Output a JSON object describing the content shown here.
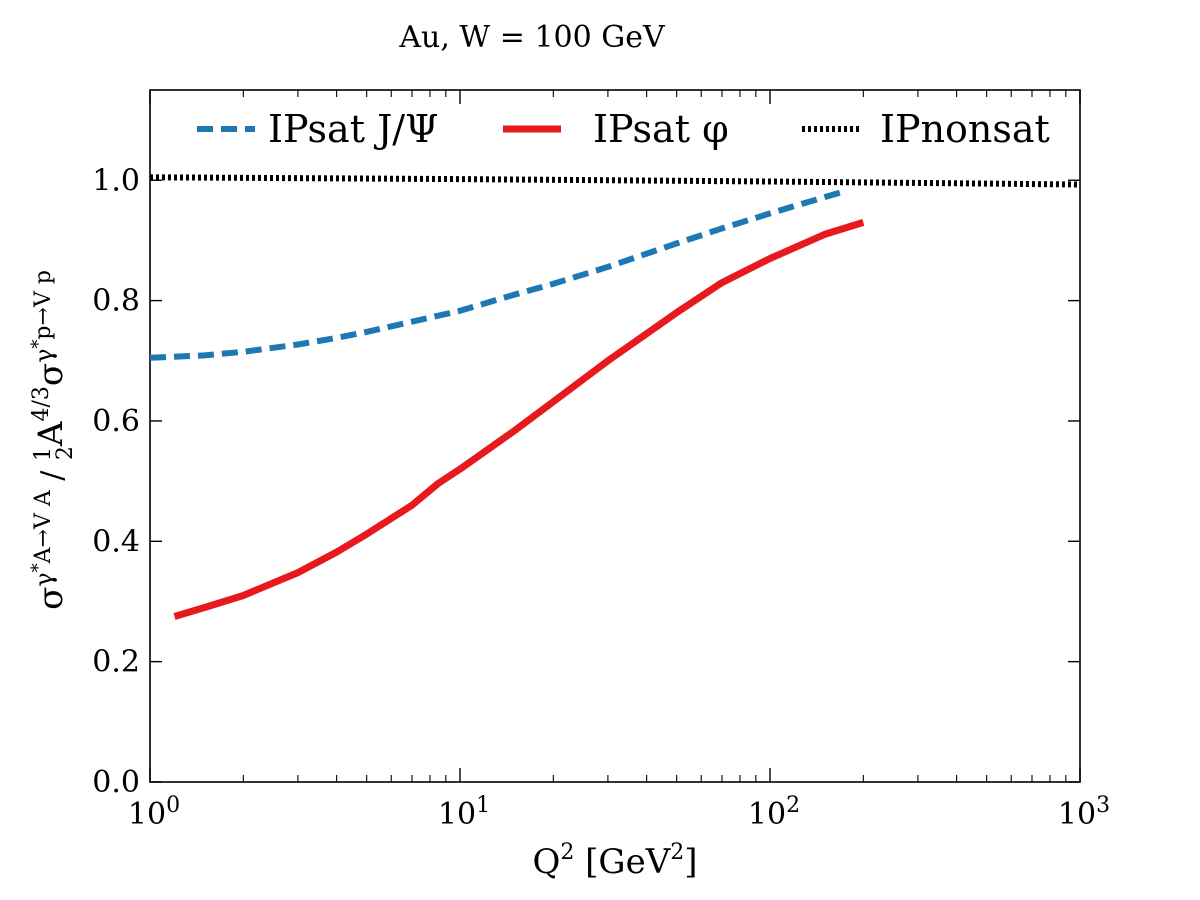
{
  "chart_data": {
    "type": "line",
    "title": "Au, W = 100  GeV",
    "xlabel": {
      "base": "Q",
      "sup": "2",
      "unit_open": " [GeV",
      "unit_sup": "2",
      "unit_close": "]"
    },
    "ylabel": {
      "sigma": "σ",
      "gamma": "γ",
      "sup_star": "*",
      "num_sub": "A→V A",
      "slash": " / ",
      "frac_num": "1",
      "frac_den": "2",
      "A": "A",
      "A_sup": "4/3",
      "den_sub": "p→V p"
    },
    "x_scale": "log",
    "xlim": [
      1,
      1000
    ],
    "ylim": [
      0,
      1.15
    ],
    "x_ticks": [
      {
        "base": "10",
        "exp": "0",
        "value": 1
      },
      {
        "base": "10",
        "exp": "1",
        "value": 10
      },
      {
        "base": "10",
        "exp": "2",
        "value": 100
      },
      {
        "base": "10",
        "exp": "3",
        "value": 1000
      }
    ],
    "y_ticks": [
      {
        "label": "0.0",
        "value": 0
      },
      {
        "label": "0.2",
        "value": 0.2
      },
      {
        "label": "0.4",
        "value": 0.4
      },
      {
        "label": "0.6",
        "value": 0.6
      },
      {
        "label": "0.8",
        "value": 0.8
      },
      {
        "label": "1.0",
        "value": 1.0
      }
    ],
    "grid": false,
    "legend_position": "top",
    "series": [
      {
        "name": "IPsat J/Ψ",
        "color": "#1f77b4",
        "style": "dashed",
        "x": [
          1.0,
          1.5,
          2.0,
          3.0,
          4.0,
          5.0,
          7.0,
          10.0,
          15.0,
          20.0,
          30.0,
          50.0,
          70.0,
          100.0,
          150.0,
          170.0
        ],
        "y": [
          0.705,
          0.709,
          0.715,
          0.727,
          0.738,
          0.748,
          0.765,
          0.783,
          0.81,
          0.828,
          0.856,
          0.895,
          0.92,
          0.945,
          0.972,
          0.98
        ]
      },
      {
        "name": "IPsat φ",
        "color": "#e8191d",
        "style": "solid",
        "x": [
          1.2,
          1.5,
          2.0,
          3.0,
          4.0,
          5.0,
          7.0,
          8.5,
          10.0,
          15.0,
          20.0,
          30.0,
          50.0,
          70.0,
          100.0,
          150.0,
          200.0
        ],
        "y": [
          0.275,
          0.29,
          0.31,
          0.348,
          0.382,
          0.412,
          0.46,
          0.496,
          0.52,
          0.584,
          0.632,
          0.7,
          0.78,
          0.83,
          0.87,
          0.91,
          0.93
        ]
      },
      {
        "name": "IPnonsat",
        "color": "#000000",
        "style": "dotted",
        "x": [
          1.0,
          10.0,
          100.0,
          1000.0
        ],
        "y": [
          1.005,
          1.002,
          0.998,
          0.993
        ]
      }
    ]
  }
}
